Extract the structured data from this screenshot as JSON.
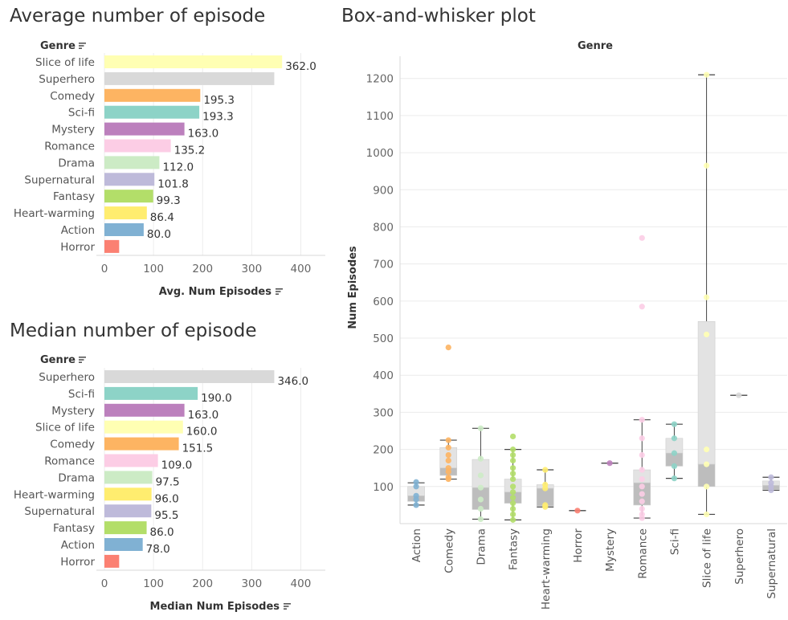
{
  "chart_data": [
    {
      "type": "bar",
      "orientation": "horizontal",
      "title": "Average number of episode",
      "category_header": "Genre",
      "xlabel": "Avg. Num Episodes",
      "xlim": [
        0,
        450
      ],
      "xticks": [
        0,
        100,
        200,
        300,
        400
      ],
      "categories": [
        "Slice of life",
        "Superhero",
        "Comedy",
        "Sci-fi",
        "Mystery",
        "Romance",
        "Drama",
        "Supernatural",
        "Fantasy",
        "Heart-warming",
        "Action",
        "Horror"
      ],
      "values": [
        362,
        346,
        195.3,
        193.3,
        163,
        135.2,
        112,
        101.8,
        99.3,
        86.4,
        80,
        30
      ],
      "value_labels": [
        "362.0",
        "",
        "195.3",
        "193.3",
        "163.0",
        "135.2",
        "112.0",
        "101.8",
        "99.3",
        "86.4",
        "80.0",
        ""
      ]
    },
    {
      "type": "bar",
      "orientation": "horizontal",
      "title": "Median number of episode",
      "category_header": "Genre",
      "xlabel": "Median Num Episodes",
      "xlim": [
        0,
        450
      ],
      "xticks": [
        0,
        100,
        200,
        300,
        400
      ],
      "categories": [
        "Superhero",
        "Sci-fi",
        "Mystery",
        "Slice of life",
        "Comedy",
        "Romance",
        "Drama",
        "Heart-warming",
        "Supernatural",
        "Fantasy",
        "Action",
        "Horror"
      ],
      "values": [
        346,
        190,
        163,
        160,
        151.5,
        109,
        97.5,
        96,
        95.5,
        86,
        78,
        30
      ],
      "value_labels": [
        "346.0",
        "190.0",
        "163.0",
        "160.0",
        "151.5",
        "109.0",
        "97.5",
        "96.0",
        "95.5",
        "86.0",
        "78.0",
        ""
      ]
    },
    {
      "type": "box",
      "title": "Box-and-whisker plot",
      "column_header": "Genre",
      "ylabel": "Num Episodes",
      "ylim": [
        0,
        1260
      ],
      "yticks": [
        100,
        200,
        300,
        400,
        500,
        600,
        700,
        800,
        900,
        1000,
        1100,
        1200
      ],
      "categories": [
        "Action",
        "Comedy",
        "Drama",
        "Fantasy",
        "Heart-warming",
        "Horror",
        "Mystery",
        "Romance",
        "Sci-fi",
        "Slice of life",
        "Superhero",
        "Supernatural"
      ],
      "boxes": [
        {
          "min": 50,
          "q1": 60,
          "median": 75,
          "q3": 100,
          "max": 110,
          "points": [
            50,
            65,
            75,
            100,
            112
          ]
        },
        {
          "min": 120,
          "q1": 130,
          "median": 150,
          "q3": 205,
          "max": 225,
          "points": [
            120,
            125,
            140,
            150,
            170,
            185,
            205,
            225,
            475
          ]
        },
        {
          "min": 12,
          "q1": 38,
          "median": 97,
          "q3": 173,
          "max": 257,
          "points": [
            12,
            40,
            65,
            97,
            130,
            175,
            257
          ]
        },
        {
          "min": 10,
          "q1": 55,
          "median": 85,
          "q3": 120,
          "max": 200,
          "points": [
            10,
            25,
            40,
            55,
            70,
            85,
            100,
            120,
            135,
            150,
            170,
            185,
            200,
            235
          ]
        },
        {
          "min": 45,
          "q1": 48,
          "median": 95,
          "q3": 105,
          "max": 145,
          "points": [
            45,
            50,
            95,
            105,
            145
          ]
        },
        {
          "min": 35,
          "q1": 35,
          "median": 35,
          "q3": 35,
          "max": 35,
          "points": [
            35
          ]
        },
        {
          "min": 163,
          "q1": 163,
          "median": 163,
          "q3": 163,
          "max": 163,
          "points": [
            163
          ]
        },
        {
          "min": 15,
          "q1": 50,
          "median": 110,
          "q3": 145,
          "max": 280,
          "points": [
            15,
            25,
            40,
            60,
            80,
            100,
            120,
            145,
            185,
            230,
            280,
            585,
            770
          ]
        },
        {
          "min": 122,
          "q1": 155,
          "median": 190,
          "q3": 230,
          "max": 268,
          "points": [
            122,
            155,
            190,
            230,
            268
          ]
        },
        {
          "min": 25,
          "q1": 100,
          "median": 160,
          "q3": 545,
          "max": 1210,
          "points": [
            25,
            100,
            160,
            200,
            510,
            610,
            965,
            1210
          ]
        },
        {
          "min": 346,
          "q1": 346,
          "median": 346,
          "q3": 346,
          "max": 346,
          "points": [
            346
          ]
        },
        {
          "min": 90,
          "q1": 92,
          "median": 103,
          "q3": 115,
          "max": 125,
          "points": [
            90,
            100,
            110,
            125
          ]
        }
      ]
    }
  ],
  "colors": {
    "Slice of life": "#ffffb3",
    "Superhero": "#d9d9d9",
    "Comedy": "#fdb462",
    "Sci-fi": "#8dd3c7",
    "Mystery": "#bc80bd",
    "Romance": "#fccde5",
    "Drama": "#ccebc5",
    "Supernatural": "#bebada",
    "Fantasy": "#b3de69",
    "Heart-warming": "#ffed6f",
    "Action": "#80b1d3",
    "Horror": "#fb8072"
  }
}
